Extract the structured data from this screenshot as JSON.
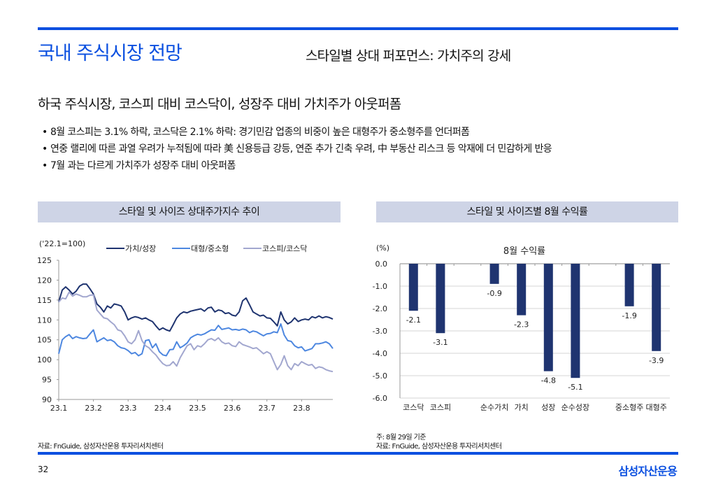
{
  "header": {
    "page_title": "국내 주식시장 전망",
    "subtitle": "스타일별 상대 퍼포먼스: 가치주의 강세"
  },
  "headline": "하국 주식시장, 코스피 대비 코스닥이, 성장주 대비 가치주가 아웃퍼폼",
  "bullets": [
    "8월 코스피는 3.1% 하락, 코스닥은 2.1% 하락: 경기민감 업종의 비중이 높은 대형주가 중소형주를 언더퍼폼",
    "연중 랠리에 따른 과열 우려가 누적됨에 따라 美 신용등급 강등, 연준 추가 긴축 우려, 中 부동산 리스크 등 악재에 더 민감하게 반응",
    "7월 과는 다르게 가치주가 성장주 대비 아웃퍼폼"
  ],
  "panels": {
    "left_title": "스타일 및 사이즈 상대주가지수 추이",
    "right_title": "스타일 및 사이즈별 8월 수익률"
  },
  "chart_data": [
    {
      "type": "line",
      "title": "스타일 및 사이즈 상대주가지수 추이",
      "unit_label": "('22.1=100)",
      "xlabel": "",
      "ylabel": "",
      "x_ticks": [
        "23.1",
        "23.2",
        "23.3",
        "23.4",
        "23.5",
        "23.6",
        "23.7",
        "23.8"
      ],
      "y_ticks": [
        90,
        95,
        100,
        105,
        110,
        115,
        120,
        125
      ],
      "ylim": [
        90,
        125
      ],
      "x_range_months": [
        0,
        7.9
      ],
      "legend_position": "top",
      "grid": false,
      "series": [
        {
          "name": "가치/성장",
          "color": "#1f3470",
          "x": [
            0,
            0.1,
            0.2,
            0.3,
            0.4,
            0.5,
            0.6,
            0.7,
            0.8,
            0.9,
            1.0,
            1.1,
            1.2,
            1.3,
            1.4,
            1.5,
            1.6,
            1.7,
            1.8,
            1.9,
            2.0,
            2.1,
            2.2,
            2.3,
            2.4,
            2.5,
            2.6,
            2.7,
            2.8,
            2.9,
            3.0,
            3.1,
            3.2,
            3.3,
            3.4,
            3.5,
            3.6,
            3.7,
            3.8,
            3.9,
            4.0,
            4.1,
            4.2,
            4.3,
            4.4,
            4.5,
            4.6,
            4.7,
            4.8,
            4.9,
            5.0,
            5.1,
            5.2,
            5.3,
            5.4,
            5.5,
            5.6,
            5.7,
            5.8,
            5.9,
            6.0,
            6.1,
            6.2,
            6.3,
            6.4,
            6.5,
            6.6,
            6.7,
            6.8,
            6.9,
            7.0,
            7.1,
            7.2,
            7.3,
            7.4,
            7.5,
            7.6,
            7.7,
            7.8,
            7.9
          ],
          "y": [
            114.5,
            117.5,
            118.3,
            117.5,
            116.5,
            117.2,
            118.5,
            119.0,
            119.0,
            117.8,
            116.5,
            114.0,
            113.2,
            112.0,
            113.5,
            113.0,
            114.0,
            113.8,
            113.5,
            112.0,
            110.0,
            110.5,
            110.8,
            110.6,
            110.2,
            110.5,
            110.0,
            109.6,
            108.5,
            107.5,
            108.0,
            107.5,
            107.2,
            108.8,
            110.5,
            111.5,
            112.0,
            111.8,
            112.2,
            112.4,
            112.6,
            112.8,
            112.2,
            113.0,
            113.2,
            112.0,
            112.5,
            112.3,
            111.6,
            111.8,
            111.2,
            111.0,
            112.0,
            114.8,
            115.5,
            113.8,
            112.0,
            111.5,
            111.0,
            111.2,
            110.5,
            110.4,
            109.5,
            108.5,
            112.0,
            110.0,
            109.0,
            109.5,
            110.5,
            109.6,
            110.0,
            110.2,
            110.0,
            110.8,
            110.5,
            111.0,
            110.5,
            110.8,
            110.6,
            110.2
          ]
        },
        {
          "name": "대형/중소형",
          "color": "#4d87e0",
          "x": [
            0,
            0.1,
            0.2,
            0.3,
            0.4,
            0.5,
            0.6,
            0.7,
            0.8,
            0.9,
            1.0,
            1.1,
            1.2,
            1.3,
            1.4,
            1.5,
            1.6,
            1.7,
            1.8,
            1.9,
            2.0,
            2.1,
            2.2,
            2.3,
            2.4,
            2.5,
            2.6,
            2.7,
            2.8,
            2.9,
            3.0,
            3.1,
            3.2,
            3.3,
            3.4,
            3.5,
            3.6,
            3.7,
            3.8,
            3.9,
            4.0,
            4.1,
            4.2,
            4.3,
            4.4,
            4.5,
            4.6,
            4.7,
            4.8,
            4.9,
            5.0,
            5.1,
            5.2,
            5.3,
            5.4,
            5.5,
            5.6,
            5.7,
            5.8,
            5.9,
            6.0,
            6.1,
            6.2,
            6.3,
            6.4,
            6.5,
            6.6,
            6.7,
            6.8,
            6.9,
            7.0,
            7.1,
            7.2,
            7.3,
            7.4,
            7.5,
            7.6,
            7.7,
            7.8,
            7.9
          ],
          "y": [
            101.5,
            105.0,
            105.8,
            106.3,
            105.3,
            105.8,
            105.5,
            105.3,
            105.4,
            106.5,
            107.5,
            104.5,
            105.0,
            105.5,
            104.8,
            105.0,
            104.5,
            103.5,
            103.0,
            102.8,
            102.3,
            101.5,
            101.8,
            101.0,
            101.5,
            104.8,
            105.0,
            103.0,
            104.0,
            102.0,
            101.2,
            101.0,
            102.5,
            102.6,
            104.5,
            103.0,
            103.5,
            104.2,
            105.5,
            106.0,
            106.4,
            106.2,
            106.5,
            107.0,
            107.5,
            107.4,
            108.6,
            107.6,
            107.8,
            108.0,
            107.5,
            107.6,
            107.4,
            107.7,
            107.5,
            106.8,
            107.2,
            107.0,
            106.5,
            106.0,
            106.5,
            106.6,
            107.0,
            106.8,
            109.0,
            106.2,
            104.8,
            104.6,
            103.5,
            103.0,
            103.2,
            102.2,
            102.5,
            102.8,
            104.0,
            104.0,
            104.2,
            104.5,
            104.0,
            102.8
          ]
        },
        {
          "name": "코스피/코스닥",
          "color": "#a2a7cf",
          "x": [
            0,
            0.1,
            0.2,
            0.3,
            0.4,
            0.5,
            0.6,
            0.7,
            0.8,
            0.9,
            1.0,
            1.1,
            1.2,
            1.3,
            1.4,
            1.5,
            1.6,
            1.7,
            1.8,
            1.9,
            2.0,
            2.1,
            2.2,
            2.3,
            2.4,
            2.5,
            2.6,
            2.7,
            2.8,
            2.9,
            3.0,
            3.1,
            3.2,
            3.3,
            3.4,
            3.5,
            3.6,
            3.7,
            3.8,
            3.9,
            4.0,
            4.1,
            4.2,
            4.3,
            4.4,
            4.5,
            4.6,
            4.7,
            4.8,
            4.9,
            5.0,
            5.1,
            5.2,
            5.3,
            5.4,
            5.5,
            5.6,
            5.7,
            5.8,
            5.9,
            6.0,
            6.1,
            6.2,
            6.3,
            6.4,
            6.5,
            6.6,
            6.7,
            6.8,
            6.9,
            7.0,
            7.1,
            7.2,
            7.3,
            7.4,
            7.5,
            7.6,
            7.7,
            7.8,
            7.9
          ],
          "y": [
            114.5,
            115.5,
            115.3,
            117.0,
            116.0,
            116.5,
            116.2,
            115.8,
            115.8,
            116.2,
            116.3,
            112.5,
            111.5,
            110.5,
            110.3,
            109.5,
            108.8,
            107.5,
            107.2,
            106.0,
            104.5,
            104.0,
            105.0,
            107.3,
            104.8,
            103.5,
            103.0,
            102.0,
            101.2,
            100.0,
            99.0,
            98.5,
            98.6,
            99.5,
            98.4,
            100.5,
            102.0,
            103.5,
            104.0,
            102.5,
            103.5,
            103.2,
            104.0,
            105.0,
            105.3,
            104.8,
            105.5,
            104.5,
            104.0,
            104.2,
            103.5,
            103.3,
            104.5,
            103.8,
            103.5,
            103.2,
            102.8,
            103.0,
            102.3,
            101.5,
            102.0,
            101.5,
            99.5,
            97.5,
            98.8,
            101.0,
            98.5,
            97.5,
            99.0,
            98.5,
            99.5,
            99.0,
            98.6,
            98.8,
            97.8,
            98.2,
            98.0,
            97.5,
            97.2,
            97.0
          ]
        }
      ]
    },
    {
      "type": "bar",
      "title": "8월 수익률",
      "ylabel": "(%)",
      "xlabel": "",
      "ylim": [
        -6.0,
        0.0
      ],
      "y_ticks": [
        "0.0",
        "-1.0",
        "-2.0",
        "-3.0",
        "-4.0",
        "-5.0",
        "-6.0"
      ],
      "grid": true,
      "bar_color": "#1f3470",
      "categories": [
        "코스닥",
        "코스피",
        "",
        "순수가치",
        "가치",
        "성장",
        "순수성장",
        "",
        "중소형주",
        "대형주"
      ],
      "values": [
        -2.1,
        -3.1,
        null,
        -0.9,
        -2.3,
        -4.8,
        -5.1,
        null,
        -1.9,
        -3.9
      ],
      "data_labels": [
        "-2.1",
        "-3.1",
        "",
        "-0.9",
        "-2.3",
        "-4.8",
        "-5.1",
        "",
        "-1.9",
        "-3.9"
      ]
    }
  ],
  "sources": {
    "left_source": "자료: FnGuide, 삼성자산운용 투자리서치센터",
    "right_note": "주: 8월 29일 기준",
    "right_source": "자료: FnGuide, 삼성자산운용 투자리서치센터"
  },
  "footer": {
    "page_number": "32",
    "brand": "삼성자산운용"
  }
}
